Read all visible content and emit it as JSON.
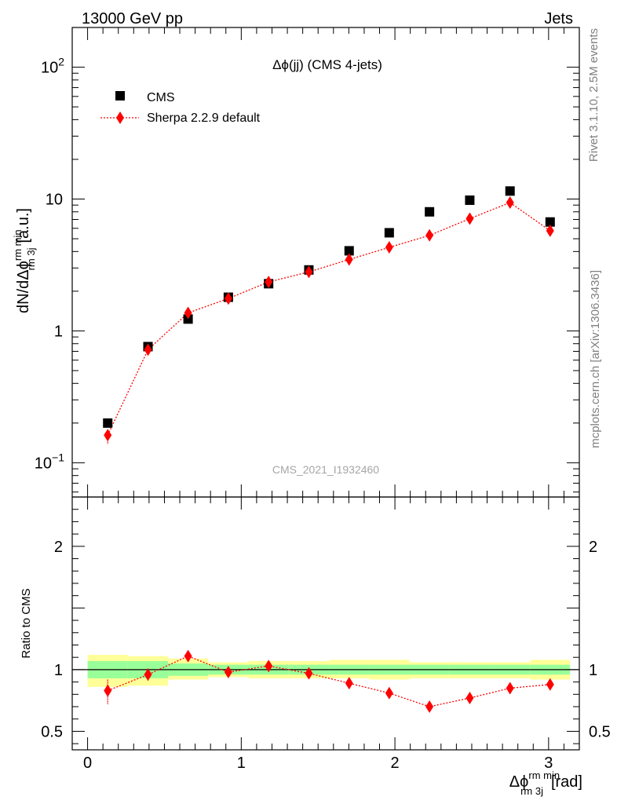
{
  "header": {
    "left": "13000 GeV pp",
    "right": "Jets"
  },
  "side_texts": {
    "rivet": "Rivet 3.1.10,  2.5M events",
    "mcplots": "mcplots.cern.ch [arXiv:1306.3436]"
  },
  "colors": {
    "data": "#000000",
    "mc": "#ff0000",
    "band_inner": "#99ff99",
    "band_outer": "#ffff99"
  },
  "chart_data": [
    {
      "type": "scatter",
      "title": "Δϕ(jj) (CMS 4-jets)",
      "analysis_id": "CMS_2021_I1932460",
      "ylabel": {
        "main": "dN/dΔϕ",
        "sup": "rm min",
        "sub": "rm 3j",
        "unit": "[a.u.]"
      },
      "yscale": "log",
      "ylim": [
        0.055,
        200
      ],
      "xlim": [
        -0.1,
        3.2
      ],
      "yticks": [
        {
          "value": 0.1,
          "label": "10",
          "exp": "−1"
        },
        {
          "value": 1,
          "label": "1",
          "exp": ""
        },
        {
          "value": 10,
          "label": "10",
          "exp": ""
        },
        {
          "value": 100,
          "label": "10",
          "exp": "2"
        }
      ],
      "legend_position": "top-left",
      "series": [
        {
          "name": "CMS",
          "marker": "square",
          "x": [
            0.131,
            0.393,
            0.654,
            0.916,
            1.178,
            1.44,
            1.702,
            1.963,
            2.225,
            2.487,
            2.749,
            3.01
          ],
          "y": [
            0.2,
            0.76,
            1.23,
            1.8,
            2.28,
            2.9,
            4.05,
            5.55,
            8.0,
            9.8,
            11.5,
            6.7
          ]
        },
        {
          "name": "Sherpa 2.2.9 default",
          "marker": "diamond",
          "line": "dotted",
          "x": [
            0.131,
            0.393,
            0.654,
            0.916,
            1.178,
            1.44,
            1.702,
            1.963,
            2.225,
            2.487,
            2.749,
            3.01
          ],
          "y": [
            0.162,
            0.72,
            1.37,
            1.76,
            2.35,
            2.8,
            3.48,
            4.3,
            5.3,
            7.1,
            9.4,
            5.75
          ],
          "yerr_low": [
            0.024,
            0.02,
            0.03,
            0.03,
            0.04,
            0.04,
            0.05,
            0.05,
            0.06,
            0.07,
            0.09,
            0.06
          ],
          "yerr_high": [
            0.016,
            0.02,
            0.03,
            0.03,
            0.04,
            0.04,
            0.05,
            0.05,
            0.06,
            0.07,
            0.09,
            0.06
          ]
        }
      ]
    },
    {
      "type": "scatter",
      "ylabel": "Ratio to CMS",
      "xlabel": {
        "main": "Δϕ",
        "sup": "rm min",
        "sub": "rm 3j",
        "unit": "[rad]"
      },
      "ylim": [
        0.35,
        2.4
      ],
      "xlim": [
        -0.1,
        3.2
      ],
      "xticks": [
        {
          "value": 0,
          "label": "0"
        },
        {
          "value": 1,
          "label": "1"
        },
        {
          "value": 2,
          "label": "2"
        },
        {
          "value": 3,
          "label": "3"
        }
      ],
      "yticks": [
        {
          "value": 0.5,
          "label": "0.5"
        },
        {
          "value": 1,
          "label": "1"
        },
        {
          "value": 2,
          "label": "2"
        }
      ],
      "bands": {
        "bin_edges": [
          0,
          0.262,
          0.524,
          0.785,
          1.047,
          1.309,
          1.571,
          1.833,
          2.094,
          2.356,
          2.618,
          2.88,
          3.14
        ],
        "inner_low": [
          0.93,
          0.93,
          0.95,
          0.96,
          0.96,
          0.96,
          0.96,
          0.96,
          0.96,
          0.96,
          0.96,
          0.96
        ],
        "inner_high": [
          1.07,
          1.07,
          1.05,
          1.04,
          1.04,
          1.04,
          1.04,
          1.04,
          1.04,
          1.04,
          1.04,
          1.04
        ],
        "outer_low": [
          0.86,
          0.87,
          0.92,
          0.94,
          0.93,
          0.93,
          0.93,
          0.92,
          0.93,
          0.93,
          0.93,
          0.92
        ],
        "outer_high": [
          1.12,
          1.11,
          1.09,
          1.06,
          1.07,
          1.07,
          1.08,
          1.08,
          1.06,
          1.06,
          1.06,
          1.08
        ]
      },
      "series": [
        {
          "name": "Sherpa 2.2.9 default",
          "marker": "diamond",
          "line": "dotted",
          "x": [
            0.131,
            0.393,
            0.654,
            0.916,
            1.178,
            1.44,
            1.702,
            1.963,
            2.225,
            2.487,
            2.749,
            3.01
          ],
          "y": [
            0.83,
            0.96,
            1.11,
            0.98,
            1.03,
            0.97,
            0.89,
            0.81,
            0.7,
            0.77,
            0.85,
            0.88
          ],
          "yerr_low": [
            0.11,
            0.05,
            0.03,
            0.03,
            0.02,
            0.02,
            0.02,
            0.01,
            0.01,
            0.01,
            0.01,
            0.01
          ],
          "yerr_high": [
            0.09,
            0.05,
            0.03,
            0.03,
            0.02,
            0.02,
            0.02,
            0.01,
            0.01,
            0.01,
            0.01,
            0.01
          ]
        }
      ]
    }
  ]
}
